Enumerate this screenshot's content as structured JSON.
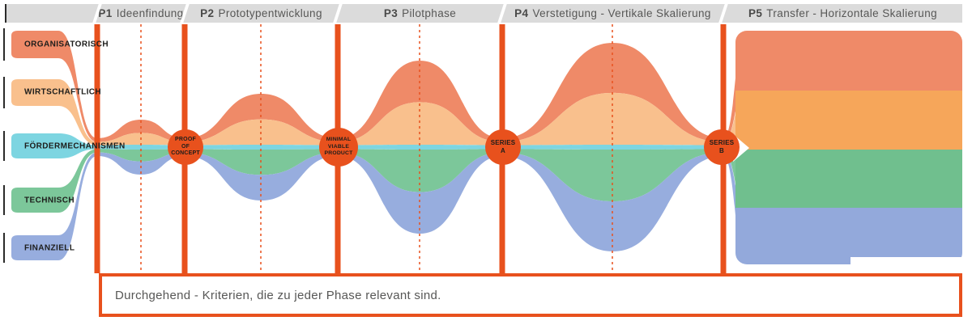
{
  "header": {
    "phases": [
      {
        "tag": "P1",
        "name": "Ideenfindung"
      },
      {
        "tag": "P2",
        "name": "Prototypentwicklung"
      },
      {
        "tag": "P3",
        "name": "Pilotphase"
      },
      {
        "tag": "P4",
        "name": "Verstetigung - Vertikale Skalierung"
      },
      {
        "tag": "P5",
        "name": "Transfer - Horizontale Skalierung"
      }
    ]
  },
  "criteria": [
    {
      "label": "ORGANISATORISCH",
      "color": "#EF8A68"
    },
    {
      "label": "WIRTSCHAFTLICH",
      "color": "#F9C08D"
    },
    {
      "label": "FÖRDERMECHANISMEN",
      "color": "#7DD5E1"
    },
    {
      "label": "TECHNISCH",
      "color": "#7CC79A"
    },
    {
      "label": "FINANZIELL",
      "color": "#97ADDE"
    }
  ],
  "milestones": [
    {
      "label": "PROOF\nOF\nCONCEPT"
    },
    {
      "label": "MINIMAL\nVIABLE\nPRODUCT"
    },
    {
      "label": "SERIES\nA"
    },
    {
      "label": "SERIES\nB"
    }
  ],
  "footer": {
    "text": "Durchgehend - Kriterien, die zu jeder Phase relevant sind."
  },
  "colors": {
    "accent": "#E8511D",
    "header_bg": "#DBDBDB",
    "header_text": "#575756",
    "label_text": "#1D1D1B",
    "block_orange": "#F6A65A",
    "block_green": "#70BF8E",
    "block_blue": "#93A9DB"
  }
}
